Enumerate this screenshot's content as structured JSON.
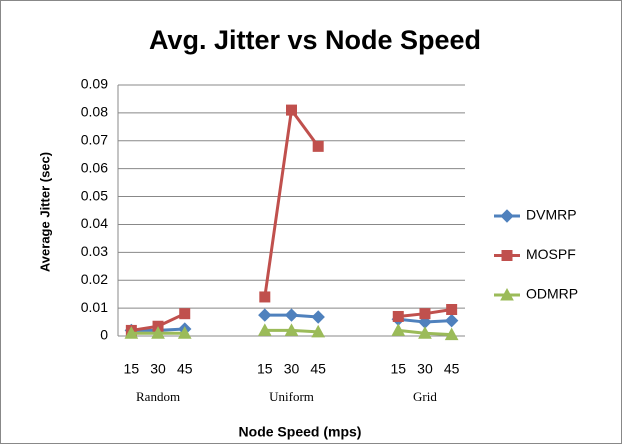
{
  "chart_data": {
    "type": "line",
    "title": "Avg. Jitter vs Node Speed",
    "xlabel": "Node Speed (mps)",
    "ylabel": "Average Jitter (sec)",
    "categories": [
      "15",
      "30",
      "45",
      null,
      null,
      "15",
      "30",
      "45",
      null,
      null,
      "15",
      "30",
      "45"
    ],
    "groups": [
      "Random",
      "Uniform",
      "Grid"
    ],
    "series": [
      {
        "name": "DVMRP",
        "color": "#4f81bd",
        "marker": "diamond",
        "values": [
          0.002,
          0.002,
          0.0025,
          null,
          null,
          0.0075,
          0.0075,
          0.0068,
          null,
          null,
          0.006,
          0.005,
          0.0055
        ]
      },
      {
        "name": "MOSPF",
        "color": "#c0504d",
        "marker": "square",
        "values": [
          0.002,
          0.0035,
          0.008,
          null,
          null,
          0.014,
          0.081,
          0.068,
          null,
          null,
          0.007,
          0.008,
          0.0095
        ]
      },
      {
        "name": "ODMRP",
        "color": "#9bbb59",
        "marker": "triangle",
        "values": [
          0.001,
          0.001,
          0.001,
          null,
          null,
          0.002,
          0.002,
          0.0015,
          null,
          null,
          0.002,
          0.001,
          0.0005
        ]
      }
    ],
    "ylim": [
      0,
      0.09
    ],
    "yticks": [
      0,
      0.01,
      0.02,
      0.03,
      0.04,
      0.05,
      0.06,
      0.07,
      0.08,
      0.09
    ],
    "grid": true,
    "legend": "right"
  }
}
